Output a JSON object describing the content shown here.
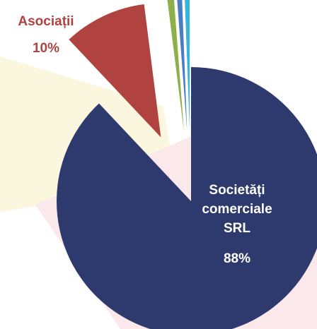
{
  "chart_data": {
    "type": "pie",
    "categories": [
      "Societăți comerciale SRL",
      "Asociații",
      null,
      null,
      null
    ],
    "values": [
      88,
      10,
      0.8,
      0.6,
      0.6
    ],
    "value_labels": [
      "88%",
      "10%",
      null,
      null,
      null
    ],
    "colors": [
      "#2e3a6e",
      "#b0433f",
      "#8db04a",
      "#4a7ec4",
      "#3cb4d8"
    ]
  }
}
